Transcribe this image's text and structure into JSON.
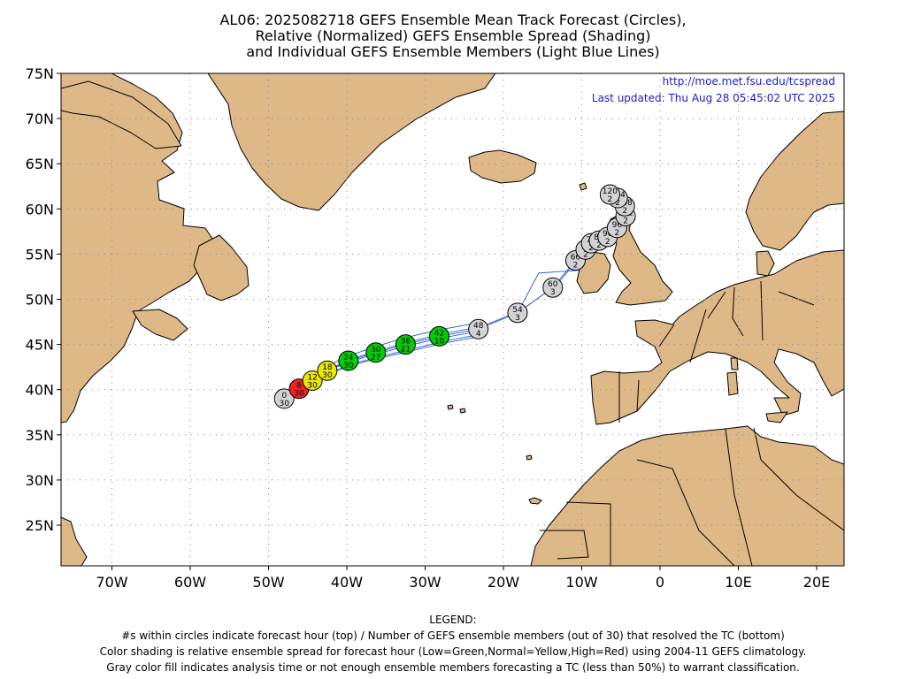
{
  "title_lines": [
    "AL06: 2025082718 GEFS Ensemble Mean Track Forecast (Circles),",
    "Relative (Normalized) GEFS Ensemble Spread (Shading)",
    "and Individual GEFS Ensemble Members (Light Blue Lines)"
  ],
  "url": "http://moe.met.fsu.edu/tcspread",
  "last_updated": "Last updated: Thu Aug 28 05:45:02 UTC 2025",
  "lat_labels": [
    "75N",
    "70N",
    "65N",
    "60N",
    "55N",
    "50N",
    "45N",
    "40N",
    "35N",
    "30N",
    "25N"
  ],
  "lon_labels": [
    "70W",
    "60W",
    "50W",
    "40W",
    "30W",
    "20W",
    "10W",
    "0",
    "10E",
    "20E"
  ],
  "legend": {
    "heading": "LEGEND:",
    "lines": [
      "#s within circles indicate forecast hour (top) / Number of GEFS ensemble members (out of 30) that resolved the TC (bottom)",
      "Color shading is relative ensemble spread for forecast hour (Low=Green,Normal=Yellow,High=Red) using 2004-11 GEFS climatology.",
      "Gray color fill indicates analysis time or not enough ensemble members forecasting a TC (less than 50%) to warrant classification."
    ]
  },
  "colors": {
    "land": "#deb887",
    "ocean": "#ffffff",
    "member_track": "#2a5bd7",
    "low": "#00cc00",
    "normal": "#e8e800",
    "high": "#ee2222",
    "gray": "#d3d3d3",
    "header_blue": "#1a1acc"
  },
  "track": [
    {
      "hour": "0",
      "members": "30",
      "lat": 39.0,
      "lon": -48.0,
      "fill": "gray"
    },
    {
      "hour": "6",
      "members": "30",
      "lat": 40.1,
      "lon": -46.1,
      "fill": "high"
    },
    {
      "hour": "12",
      "members": "30",
      "lat": 41.0,
      "lon": -44.4,
      "fill": "normal"
    },
    {
      "hour": "18",
      "members": "30",
      "lat": 42.1,
      "lon": -42.5,
      "fill": "normal"
    },
    {
      "hour": "24",
      "members": "30",
      "lat": 43.2,
      "lon": -39.8,
      "fill": "low"
    },
    {
      "hour": "30",
      "members": "27",
      "lat": 44.1,
      "lon": -36.3,
      "fill": "low"
    },
    {
      "hour": "36",
      "members": "21",
      "lat": 45.0,
      "lon": -32.5,
      "fill": "low"
    },
    {
      "hour": "42",
      "members": "10",
      "lat": 45.9,
      "lon": -28.2,
      "fill": "low"
    },
    {
      "hour": "48",
      "members": "4",
      "lat": 46.7,
      "lon": -23.2,
      "fill": "gray"
    },
    {
      "hour": "54",
      "members": "3",
      "lat": 48.5,
      "lon": -18.2,
      "fill": "gray"
    },
    {
      "hour": "60",
      "members": "3",
      "lat": 51.3,
      "lon": -13.7,
      "fill": "gray"
    },
    {
      "hour": "66",
      "members": "2",
      "lat": 54.3,
      "lon": -10.8,
      "fill": "gray"
    },
    {
      "hour": "72",
      "members": "2",
      "lat": 55.5,
      "lon": -9.5,
      "fill": "gray"
    },
    {
      "hour": "78",
      "members": "2",
      "lat": 56.2,
      "lon": -8.8,
      "fill": "gray"
    },
    {
      "hour": "84",
      "members": "2",
      "lat": 56.5,
      "lon": -7.8,
      "fill": "gray"
    },
    {
      "hour": "90",
      "members": "2",
      "lat": 56.9,
      "lon": -6.7,
      "fill": "gray"
    },
    {
      "hour": "96",
      "members": "2",
      "lat": 57.9,
      "lon": -5.5,
      "fill": "gray"
    },
    {
      "hour": "102",
      "members": "2",
      "lat": 59.2,
      "lon": -4.4,
      "fill": "gray"
    },
    {
      "hour": "108",
      "members": "2",
      "lat": 60.3,
      "lon": -4.5,
      "fill": "gray"
    },
    {
      "hour": "114",
      "members": "2",
      "lat": 61.2,
      "lon": -5.4,
      "fill": "gray"
    },
    {
      "hour": "120",
      "members": "2",
      "lat": 61.6,
      "lon": -6.4,
      "fill": "gray"
    }
  ]
}
